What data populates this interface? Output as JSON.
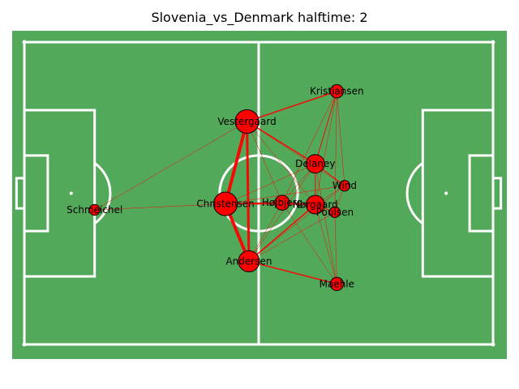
{
  "chart_data": {
    "type": "network",
    "title": "Slovenia_vs_Denmark halftime: 2",
    "pitch": {
      "length": 120,
      "width": 80,
      "color": "#53a95a",
      "line_color": "#ffffff"
    },
    "node_color": "#ff0000",
    "edge_color": "#ff0000",
    "players": [
      {
        "name": "Kristiansen",
        "x": 80.0,
        "y": 13.0,
        "size": 1
      },
      {
        "name": "Vestergaard",
        "x": 57.0,
        "y": 21.0,
        "size": 3
      },
      {
        "name": "Delaney",
        "x": 74.5,
        "y": 32.2,
        "size": 2
      },
      {
        "name": "Wind",
        "x": 82.0,
        "y": 38.0,
        "size": 0.5
      },
      {
        "name": "Schmeichel",
        "x": 18.0,
        "y": 44.4,
        "size": 0.5
      },
      {
        "name": "Christensen",
        "x": 51.5,
        "y": 42.8,
        "size": 3
      },
      {
        "name": "Højbjerg",
        "x": 66.0,
        "y": 42.5,
        "size": 1.3
      },
      {
        "name": "Nørgaard",
        "x": 74.5,
        "y": 43.0,
        "size": 2
      },
      {
        "name": "Poulsen",
        "x": 79.5,
        "y": 45.0,
        "size": 0.5
      },
      {
        "name": "Andersen",
        "x": 57.5,
        "y": 58.0,
        "size": 2.5
      },
      {
        "name": "Maehle",
        "x": 80.0,
        "y": 64.0,
        "size": 1
      }
    ],
    "edges": [
      {
        "from": "Vestergaard",
        "to": "Christensen",
        "weight": 4
      },
      {
        "from": "Christensen",
        "to": "Andersen",
        "weight": 4
      },
      {
        "from": "Vestergaard",
        "to": "Andersen",
        "weight": 3
      },
      {
        "from": "Vestergaard",
        "to": "Kristiansen",
        "weight": 1.5
      },
      {
        "from": "Vestergaard",
        "to": "Delaney",
        "weight": 1.5
      },
      {
        "from": "Andersen",
        "to": "Maehle",
        "weight": 1.5
      },
      {
        "from": "Andersen",
        "to": "Nørgaard",
        "weight": 1.5
      },
      {
        "from": "Christensen",
        "to": "Højbjerg",
        "weight": 1.5
      },
      {
        "from": "Højbjerg",
        "to": "Nørgaard",
        "weight": 1.5
      },
      {
        "from": "Delaney",
        "to": "Kristiansen",
        "weight": 1
      },
      {
        "from": "Delaney",
        "to": "Nørgaard",
        "weight": 1
      },
      {
        "from": "Delaney",
        "to": "Wind",
        "weight": 1
      },
      {
        "from": "Nørgaard",
        "to": "Poulsen",
        "weight": 1
      },
      {
        "from": "Christensen",
        "to": "Nørgaard",
        "weight": 1
      },
      {
        "from": "Christensen",
        "to": "Delaney",
        "weight": 0.5
      },
      {
        "from": "Christensen",
        "to": "Schmeichel",
        "weight": 0.5
      },
      {
        "from": "Schmeichel",
        "to": "Vestergaard",
        "weight": 0.5
      },
      {
        "from": "Kristiansen",
        "to": "Wind",
        "weight": 0.5
      },
      {
        "from": "Kristiansen",
        "to": "Nørgaard",
        "weight": 0.5
      },
      {
        "from": "Kristiansen",
        "to": "Poulsen",
        "weight": 0.5
      },
      {
        "from": "Kristiansen",
        "to": "Højbjerg",
        "weight": 0.5
      },
      {
        "from": "Vestergaard",
        "to": "Højbjerg",
        "weight": 0.5
      },
      {
        "from": "Vestergaard",
        "to": "Nørgaard",
        "weight": 0.5
      },
      {
        "from": "Vestergaard",
        "to": "Wind",
        "weight": 0.5
      },
      {
        "from": "Andersen",
        "to": "Delaney",
        "weight": 0.5
      },
      {
        "from": "Andersen",
        "to": "Højbjerg",
        "weight": 0.5
      },
      {
        "from": "Andersen",
        "to": "Wind",
        "weight": 0.5
      },
      {
        "from": "Andersen",
        "to": "Poulsen",
        "weight": 0.5
      },
      {
        "from": "Maehle",
        "to": "Nørgaard",
        "weight": 0.5
      },
      {
        "from": "Maehle",
        "to": "Højbjerg",
        "weight": 0.5
      },
      {
        "from": "Maehle",
        "to": "Poulsen",
        "weight": 0.5
      },
      {
        "from": "Maehle",
        "to": "Delaney",
        "weight": 0.5
      },
      {
        "from": "Wind",
        "to": "Nørgaard",
        "weight": 0.5
      },
      {
        "from": "Wind",
        "to": "Poulsen",
        "weight": 0.5
      },
      {
        "from": "Højbjerg",
        "to": "Delaney",
        "weight": 0.5
      },
      {
        "from": "Christensen",
        "to": "Wind",
        "weight": 0.5
      }
    ]
  }
}
